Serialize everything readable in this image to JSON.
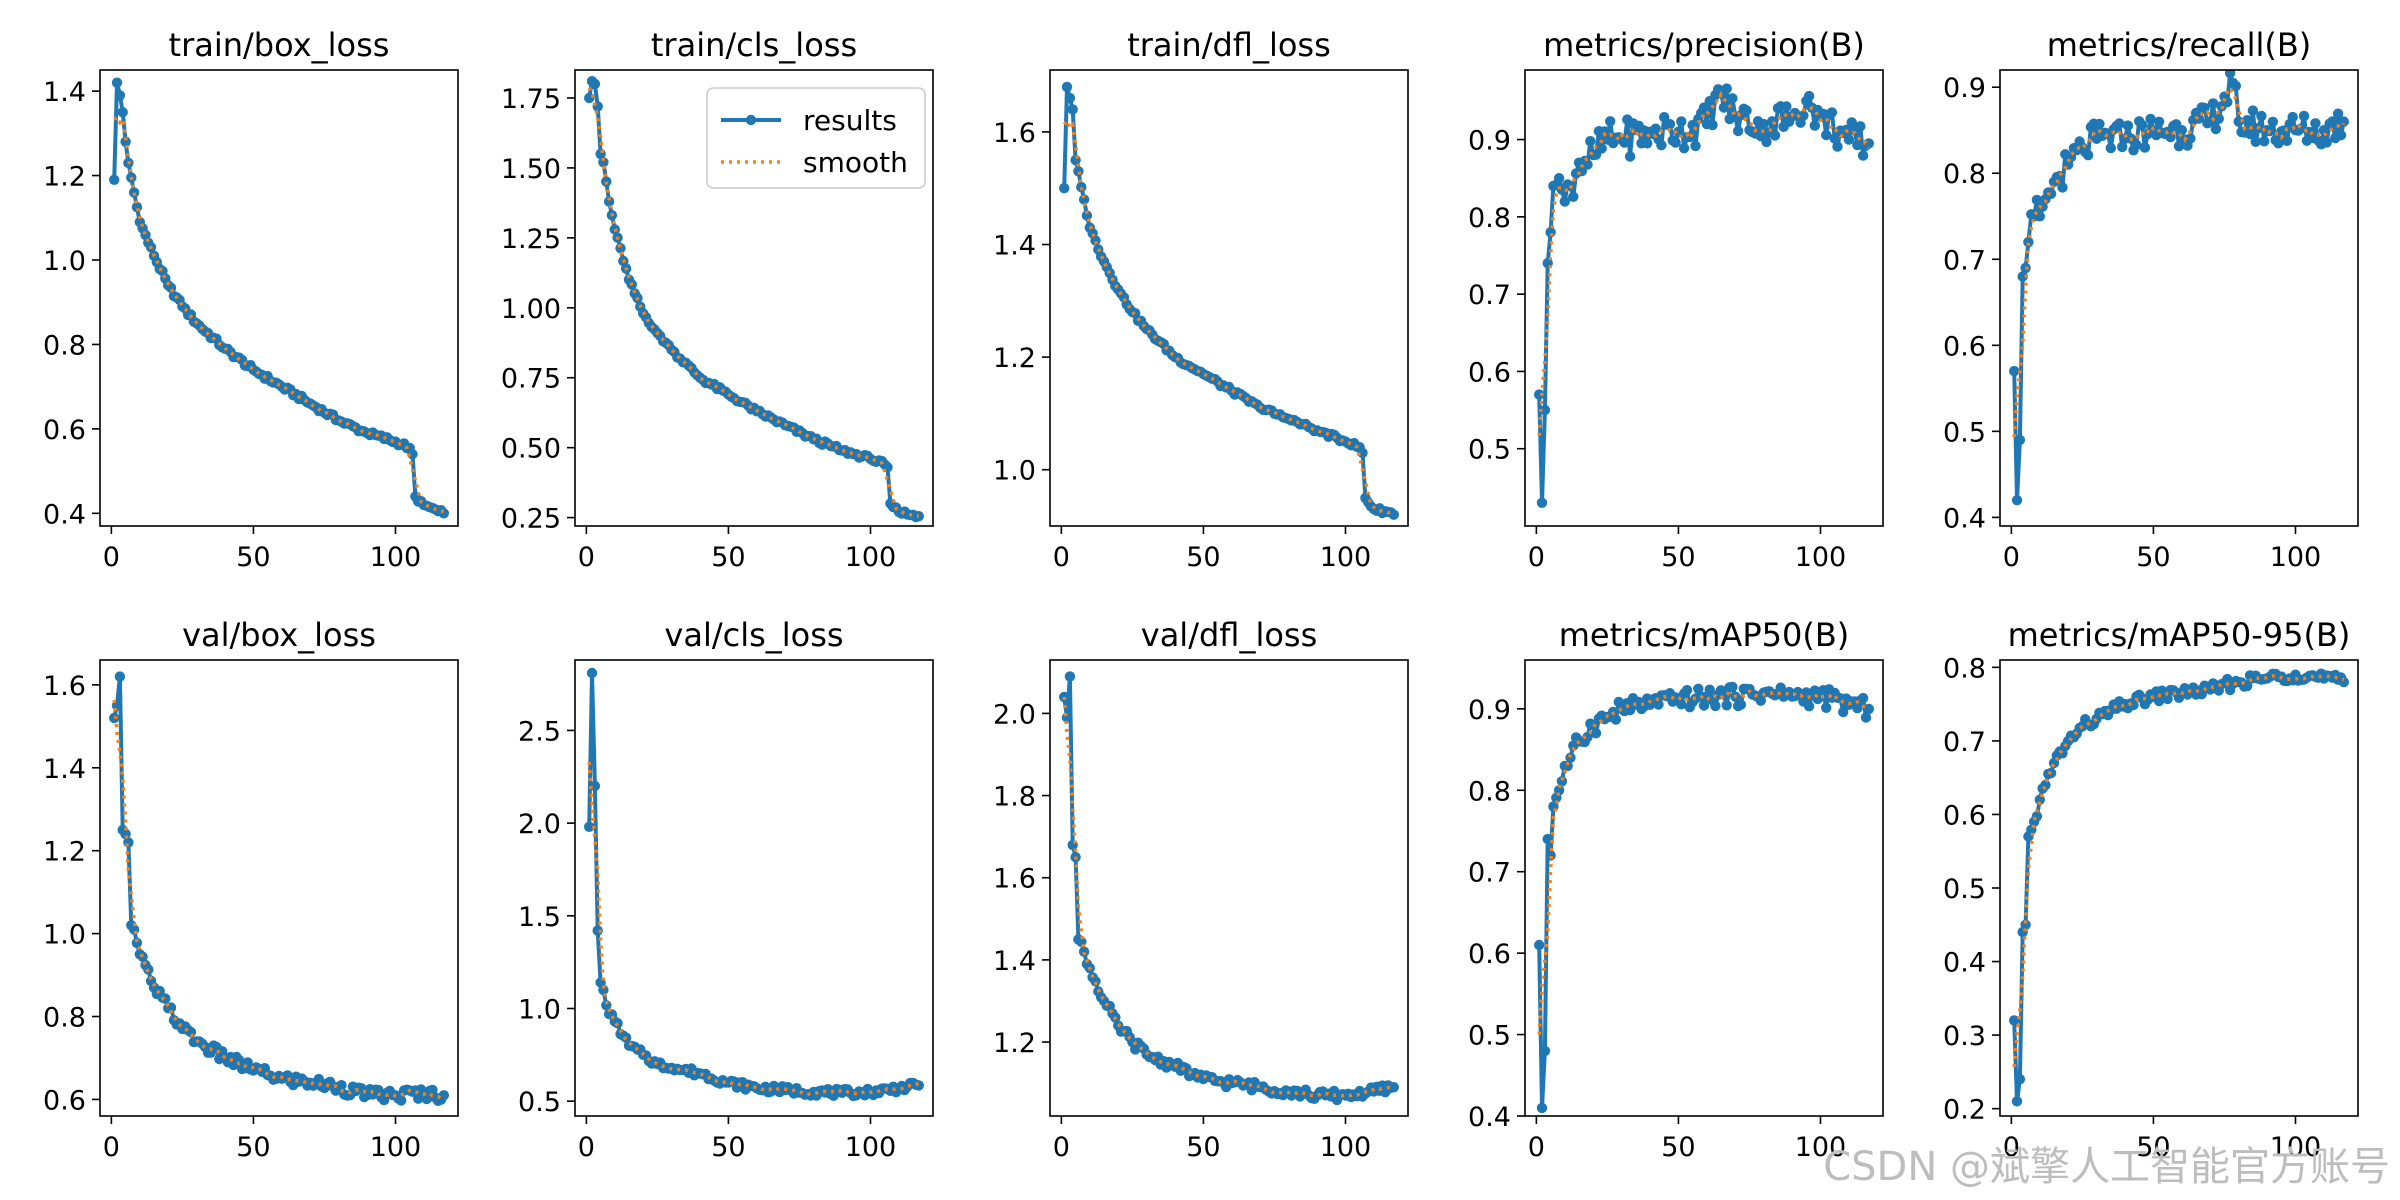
{
  "watermark": "CSDN @斌擎人工智能官方账号",
  "legend": {
    "results": "results",
    "smooth": "smooth"
  },
  "colors": {
    "results": "#1f77b4",
    "smooth": "#ff7f0e"
  },
  "chart_data": [
    {
      "type": "line",
      "title": "train/box_loss",
      "xlim": [
        -4,
        122
      ],
      "ylim": [
        0.37,
        1.45
      ],
      "xticks": [
        0,
        50,
        100
      ],
      "yticks": [
        0.4,
        0.6,
        0.8,
        1.0,
        1.2,
        1.4
      ],
      "ydecimals": 1,
      "anchors": [
        [
          1,
          1.19
        ],
        [
          2,
          1.42
        ],
        [
          3,
          1.39
        ],
        [
          4,
          1.35
        ],
        [
          5,
          1.28
        ],
        [
          6,
          1.23
        ],
        [
          8,
          1.16
        ],
        [
          10,
          1.09
        ],
        [
          15,
          1.01
        ],
        [
          20,
          0.94
        ],
        [
          25,
          0.89
        ],
        [
          30,
          0.85
        ],
        [
          40,
          0.79
        ],
        [
          50,
          0.74
        ],
        [
          60,
          0.7
        ],
        [
          70,
          0.66
        ],
        [
          80,
          0.62
        ],
        [
          90,
          0.59
        ],
        [
          100,
          0.57
        ],
        [
          105,
          0.555
        ],
        [
          106,
          0.54
        ],
        [
          107,
          0.44
        ],
        [
          110,
          0.42
        ],
        [
          115,
          0.405
        ],
        [
          117,
          0.4
        ]
      ],
      "noise": 0.006
    },
    {
      "type": "line",
      "title": "train/cls_loss",
      "xlim": [
        -4,
        122
      ],
      "ylim": [
        0.22,
        1.85
      ],
      "xticks": [
        0,
        50,
        100
      ],
      "yticks": [
        0.25,
        0.5,
        0.75,
        1.0,
        1.25,
        1.5,
        1.75
      ],
      "ydecimals": 2,
      "legend": true,
      "anchors": [
        [
          1,
          1.75
        ],
        [
          2,
          1.81
        ],
        [
          3,
          1.8
        ],
        [
          4,
          1.72
        ],
        [
          5,
          1.55
        ],
        [
          6,
          1.52
        ],
        [
          8,
          1.38
        ],
        [
          10,
          1.28
        ],
        [
          15,
          1.1
        ],
        [
          20,
          0.98
        ],
        [
          25,
          0.91
        ],
        [
          30,
          0.85
        ],
        [
          40,
          0.75
        ],
        [
          50,
          0.69
        ],
        [
          60,
          0.63
        ],
        [
          70,
          0.58
        ],
        [
          80,
          0.53
        ],
        [
          90,
          0.49
        ],
        [
          100,
          0.46
        ],
        [
          105,
          0.44
        ],
        [
          106,
          0.43
        ],
        [
          107,
          0.3
        ],
        [
          110,
          0.27
        ],
        [
          115,
          0.26
        ],
        [
          117,
          0.255
        ]
      ],
      "noise": 0.008
    },
    {
      "type": "line",
      "title": "train/dfl_loss",
      "xlim": [
        -4,
        122
      ],
      "ylim": [
        0.9,
        1.71
      ],
      "xticks": [
        0,
        50,
        100
      ],
      "yticks": [
        1.0,
        1.2,
        1.4,
        1.6
      ],
      "ydecimals": 1,
      "anchors": [
        [
          1,
          1.5
        ],
        [
          2,
          1.68
        ],
        [
          3,
          1.66
        ],
        [
          4,
          1.64
        ],
        [
          5,
          1.55
        ],
        [
          6,
          1.53
        ],
        [
          8,
          1.48
        ],
        [
          10,
          1.43
        ],
        [
          15,
          1.37
        ],
        [
          20,
          1.32
        ],
        [
          25,
          1.28
        ],
        [
          30,
          1.25
        ],
        [
          40,
          1.2
        ],
        [
          50,
          1.17
        ],
        [
          60,
          1.14
        ],
        [
          70,
          1.11
        ],
        [
          80,
          1.09
        ],
        [
          90,
          1.07
        ],
        [
          100,
          1.05
        ],
        [
          105,
          1.04
        ],
        [
          106,
          1.03
        ],
        [
          107,
          0.95
        ],
        [
          110,
          0.93
        ],
        [
          115,
          0.925
        ],
        [
          117,
          0.92
        ]
      ],
      "noise": 0.004
    },
    {
      "type": "line",
      "title": "metrics/precision(B)",
      "xlim": [
        -4,
        122
      ],
      "ylim": [
        0.4,
        0.99
      ],
      "xticks": [
        0,
        50,
        100
      ],
      "yticks": [
        0.5,
        0.6,
        0.7,
        0.8,
        0.9
      ],
      "ydecimals": 1,
      "anchors": [
        [
          1,
          0.57
        ],
        [
          2,
          0.43
        ],
        [
          3,
          0.55
        ],
        [
          4,
          0.74
        ],
        [
          5,
          0.78
        ],
        [
          6,
          0.84
        ],
        [
          8,
          0.85
        ],
        [
          10,
          0.82
        ],
        [
          12,
          0.84
        ],
        [
          15,
          0.87
        ],
        [
          20,
          0.88
        ],
        [
          25,
          0.9
        ],
        [
          30,
          0.9
        ],
        [
          40,
          0.91
        ],
        [
          50,
          0.91
        ],
        [
          60,
          0.92
        ],
        [
          64,
          0.965
        ],
        [
          70,
          0.93
        ],
        [
          80,
          0.92
        ],
        [
          90,
          0.93
        ],
        [
          95,
          0.95
        ],
        [
          100,
          0.93
        ],
        [
          110,
          0.9
        ],
        [
          117,
          0.895
        ]
      ],
      "noise": 0.025
    },
    {
      "type": "line",
      "title": "metrics/recall(B)",
      "xlim": [
        -4,
        122
      ],
      "ylim": [
        0.39,
        0.92
      ],
      "xticks": [
        0,
        50,
        100
      ],
      "yticks": [
        0.4,
        0.5,
        0.6,
        0.7,
        0.8,
        0.9
      ],
      "ydecimals": 1,
      "anchors": [
        [
          1,
          0.57
        ],
        [
          2,
          0.42
        ],
        [
          3,
          0.49
        ],
        [
          4,
          0.68
        ],
        [
          5,
          0.69
        ],
        [
          6,
          0.72
        ],
        [
          8,
          0.75
        ],
        [
          10,
          0.75
        ],
        [
          12,
          0.77
        ],
        [
          15,
          0.79
        ],
        [
          20,
          0.81
        ],
        [
          25,
          0.83
        ],
        [
          30,
          0.84
        ],
        [
          40,
          0.84
        ],
        [
          50,
          0.85
        ],
        [
          60,
          0.85
        ],
        [
          70,
          0.86
        ],
        [
          78,
          0.905
        ],
        [
          80,
          0.86
        ],
        [
          90,
          0.85
        ],
        [
          100,
          0.85
        ],
        [
          110,
          0.85
        ],
        [
          117,
          0.86
        ]
      ],
      "noise": 0.02
    },
    {
      "type": "line",
      "title": "val/box_loss",
      "xlim": [
        -4,
        122
      ],
      "ylim": [
        0.56,
        1.66
      ],
      "xticks": [
        0,
        50,
        100
      ],
      "yticks": [
        0.6,
        0.8,
        1.0,
        1.2,
        1.4,
        1.6
      ],
      "ydecimals": 1,
      "anchors": [
        [
          1,
          1.52
        ],
        [
          2,
          1.55
        ],
        [
          3,
          1.62
        ],
        [
          4,
          1.25
        ],
        [
          5,
          1.24
        ],
        [
          6,
          1.22
        ],
        [
          7,
          1.02
        ],
        [
          8,
          1.01
        ],
        [
          10,
          0.95
        ],
        [
          15,
          0.87
        ],
        [
          20,
          0.82
        ],
        [
          25,
          0.77
        ],
        [
          30,
          0.74
        ],
        [
          40,
          0.7
        ],
        [
          50,
          0.67
        ],
        [
          60,
          0.65
        ],
        [
          70,
          0.64
        ],
        [
          80,
          0.63
        ],
        [
          90,
          0.61
        ],
        [
          100,
          0.61
        ],
        [
          110,
          0.615
        ],
        [
          117,
          0.61
        ]
      ],
      "noise": 0.015
    },
    {
      "type": "line",
      "title": "val/cls_loss",
      "xlim": [
        -4,
        122
      ],
      "ylim": [
        0.42,
        2.88
      ],
      "xticks": [
        0,
        50,
        100
      ],
      "yticks": [
        0.5,
        1.0,
        1.5,
        2.0,
        2.5
      ],
      "ydecimals": 1,
      "anchors": [
        [
          1,
          1.98
        ],
        [
          2,
          2.81
        ],
        [
          3,
          2.2
        ],
        [
          4,
          1.42
        ],
        [
          5,
          1.14
        ],
        [
          6,
          1.1
        ],
        [
          8,
          0.97
        ],
        [
          10,
          0.93
        ],
        [
          15,
          0.8
        ],
        [
          20,
          0.75
        ],
        [
          25,
          0.7
        ],
        [
          30,
          0.68
        ],
        [
          40,
          0.65
        ],
        [
          50,
          0.6
        ],
        [
          60,
          0.57
        ],
        [
          70,
          0.56
        ],
        [
          80,
          0.55
        ],
        [
          90,
          0.545
        ],
        [
          100,
          0.55
        ],
        [
          110,
          0.57
        ],
        [
          117,
          0.585
        ]
      ],
      "noise": 0.02
    },
    {
      "type": "line",
      "title": "val/dfl_loss",
      "xlim": [
        -4,
        122
      ],
      "ylim": [
        1.02,
        2.13
      ],
      "xticks": [
        0,
        50,
        100
      ],
      "yticks": [
        1.2,
        1.4,
        1.6,
        1.8,
        2.0
      ],
      "ydecimals": 1,
      "anchors": [
        [
          1,
          2.04
        ],
        [
          2,
          1.99
        ],
        [
          3,
          2.09
        ],
        [
          4,
          1.68
        ],
        [
          5,
          1.65
        ],
        [
          6,
          1.45
        ],
        [
          8,
          1.42
        ],
        [
          10,
          1.38
        ],
        [
          15,
          1.3
        ],
        [
          20,
          1.24
        ],
        [
          25,
          1.2
        ],
        [
          30,
          1.17
        ],
        [
          40,
          1.14
        ],
        [
          50,
          1.11
        ],
        [
          60,
          1.1
        ],
        [
          70,
          1.09
        ],
        [
          80,
          1.08
        ],
        [
          90,
          1.07
        ],
        [
          100,
          1.07
        ],
        [
          110,
          1.08
        ],
        [
          117,
          1.09
        ]
      ],
      "noise": 0.012
    },
    {
      "type": "line",
      "title": "metrics/mAP50(B)",
      "xlim": [
        -4,
        122
      ],
      "ylim": [
        0.4,
        0.96
      ],
      "xticks": [
        0,
        50,
        100
      ],
      "yticks": [
        0.4,
        0.5,
        0.6,
        0.7,
        0.8,
        0.9
      ],
      "ydecimals": 1,
      "anchors": [
        [
          1,
          0.61
        ],
        [
          2,
          0.41
        ],
        [
          3,
          0.48
        ],
        [
          4,
          0.74
        ],
        [
          5,
          0.72
        ],
        [
          6,
          0.78
        ],
        [
          8,
          0.8
        ],
        [
          10,
          0.83
        ],
        [
          12,
          0.84
        ],
        [
          15,
          0.86
        ],
        [
          20,
          0.88
        ],
        [
          25,
          0.89
        ],
        [
          30,
          0.9
        ],
        [
          40,
          0.905
        ],
        [
          50,
          0.91
        ],
        [
          60,
          0.915
        ],
        [
          70,
          0.915
        ],
        [
          80,
          0.92
        ],
        [
          90,
          0.915
        ],
        [
          100,
          0.915
        ],
        [
          110,
          0.905
        ],
        [
          117,
          0.9
        ]
      ],
      "noise": 0.012
    },
    {
      "type": "line",
      "title": "metrics/mAP50-95(B)",
      "xlim": [
        -4,
        122
      ],
      "ylim": [
        0.19,
        0.81
      ],
      "xticks": [
        0,
        50,
        100
      ],
      "yticks": [
        0.2,
        0.3,
        0.4,
        0.5,
        0.6,
        0.7,
        0.8
      ],
      "ydecimals": 1,
      "anchors": [
        [
          1,
          0.32
        ],
        [
          2,
          0.21
        ],
        [
          3,
          0.24
        ],
        [
          4,
          0.44
        ],
        [
          5,
          0.45
        ],
        [
          6,
          0.57
        ],
        [
          8,
          0.59
        ],
        [
          10,
          0.62
        ],
        [
          12,
          0.64
        ],
        [
          15,
          0.67
        ],
        [
          20,
          0.7
        ],
        [
          25,
          0.72
        ],
        [
          30,
          0.73
        ],
        [
          40,
          0.75
        ],
        [
          50,
          0.76
        ],
        [
          60,
          0.765
        ],
        [
          70,
          0.77
        ],
        [
          80,
          0.78
        ],
        [
          90,
          0.785
        ],
        [
          100,
          0.79
        ],
        [
          110,
          0.785
        ],
        [
          117,
          0.78
        ]
      ],
      "noise": 0.008
    }
  ]
}
